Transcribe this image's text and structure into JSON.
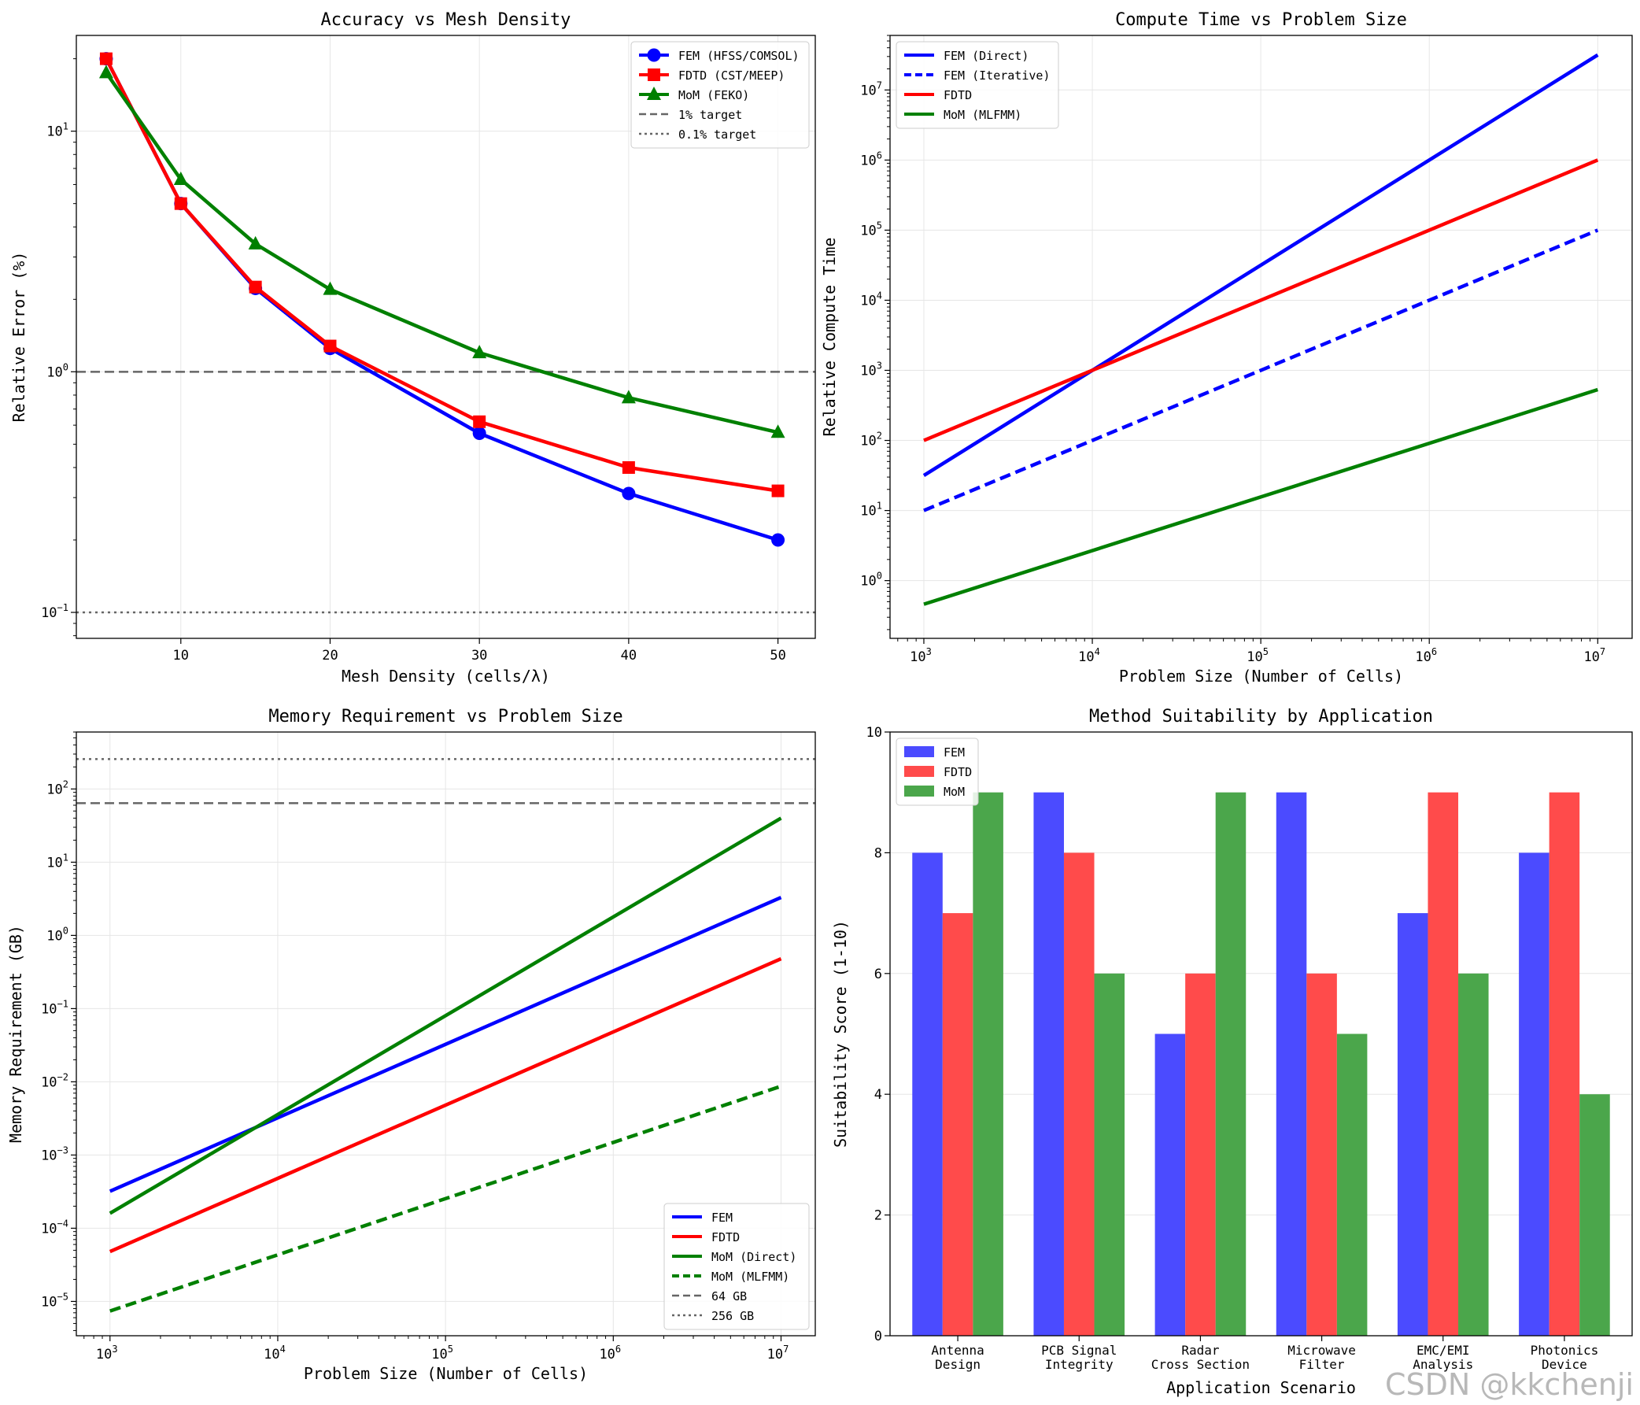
{
  "chart_data": [
    {
      "type": "line",
      "title": "Accuracy vs Mesh Density",
      "xlabel": "Mesh Density (cells/λ)",
      "ylabel": "Relative Error (%)",
      "xscale": "linear",
      "yscale": "log",
      "xlim": [
        3,
        52.5
      ],
      "ylim": [
        0.078,
        25
      ],
      "xticks": [
        10,
        20,
        30,
        40,
        50
      ],
      "yticks": [
        {
          "base": "10",
          "exp": "1",
          "value": 10
        },
        {
          "base": "10",
          "exp": "0",
          "value": 1
        },
        {
          "base": "10",
          "exp": "−1",
          "value": 0.1
        }
      ],
      "grid": true,
      "legend_position": "upper right",
      "x": [
        5,
        10,
        15,
        20,
        30,
        40,
        50
      ],
      "series": [
        {
          "name": "FEM (HFSS/COMSOL)",
          "color": "#0000ff",
          "marker": "circle",
          "values": [
            20,
            5,
            2.22,
            1.25,
            0.555,
            0.312,
            0.2
          ]
        },
        {
          "name": "FDTD (CST/MEEP)",
          "color": "#ff0000",
          "marker": "square",
          "values": [
            20,
            5,
            2.25,
            1.28,
            0.62,
            0.4,
            0.32
          ]
        },
        {
          "name": "MoM (FEKO)",
          "color": "#008000",
          "marker": "triangle",
          "values": [
            17.5,
            6.3,
            3.4,
            2.2,
            1.2,
            0.78,
            0.56
          ]
        }
      ],
      "reference_lines": [
        {
          "name": "1% target",
          "value": 1,
          "style": "dashed",
          "color": "#666666"
        },
        {
          "name": "0.1% target",
          "value": 0.1,
          "style": "dotted",
          "color": "#666666"
        }
      ]
    },
    {
      "type": "line",
      "title": "Compute Time vs Problem Size",
      "xlabel": "Problem Size (Number of Cells)",
      "ylabel": "Relative Compute Time",
      "xscale": "log",
      "yscale": "log",
      "xlim": [
        630,
        16000000
      ],
      "ylim": [
        0.15,
        60000000
      ],
      "xticks": [
        {
          "base": "10",
          "exp": "3",
          "value": 1000
        },
        {
          "base": "10",
          "exp": "4",
          "value": 10000
        },
        {
          "base": "10",
          "exp": "5",
          "value": 100000
        },
        {
          "base": "10",
          "exp": "6",
          "value": 1000000
        },
        {
          "base": "10",
          "exp": "7",
          "value": 10000000
        }
      ],
      "yticks": [
        {
          "base": "10",
          "exp": "0",
          "value": 1
        },
        {
          "base": "10",
          "exp": "1",
          "value": 10
        },
        {
          "base": "10",
          "exp": "2",
          "value": 100
        },
        {
          "base": "10",
          "exp": "3",
          "value": 1000
        },
        {
          "base": "10",
          "exp": "4",
          "value": 10000
        },
        {
          "base": "10",
          "exp": "5",
          "value": 100000
        },
        {
          "base": "10",
          "exp": "6",
          "value": 1000000
        },
        {
          "base": "10",
          "exp": "7",
          "value": 10000000
        }
      ],
      "grid": true,
      "legend_position": "upper left",
      "x": [
        1000,
        10000000
      ],
      "series": [
        {
          "name": "FEM (Direct)",
          "color": "#0000ff",
          "style": "solid",
          "values": [
            31.6,
            31600000
          ]
        },
        {
          "name": "FEM (Iterative)",
          "color": "#0000ff",
          "style": "dashed",
          "values": [
            10,
            100000
          ]
        },
        {
          "name": "FDTD",
          "color": "#ff0000",
          "style": "solid",
          "values": [
            100,
            1000000
          ]
        },
        {
          "name": "MoM (MLFMM)",
          "color": "#008000",
          "style": "solid",
          "values": [
            0.46,
            530
          ]
        }
      ]
    },
    {
      "type": "line",
      "title": "Memory Requirement vs Problem Size",
      "xlabel": "Problem Size (Number of Cells)",
      "ylabel": "Memory Requirement (GB)",
      "xscale": "log",
      "yscale": "log",
      "xlim": [
        630,
        16000000
      ],
      "ylim": [
        3.4e-06,
        600
      ],
      "xticks": [
        {
          "base": "10",
          "exp": "3",
          "value": 1000
        },
        {
          "base": "10",
          "exp": "4",
          "value": 10000
        },
        {
          "base": "10",
          "exp": "5",
          "value": 100000
        },
        {
          "base": "10",
          "exp": "6",
          "value": 1000000
        },
        {
          "base": "10",
          "exp": "7",
          "value": 10000000
        }
      ],
      "yticks": [
        {
          "base": "10",
          "exp": "−5",
          "value": 1e-05
        },
        {
          "base": "10",
          "exp": "−4",
          "value": 0.0001
        },
        {
          "base": "10",
          "exp": "−3",
          "value": 0.001
        },
        {
          "base": "10",
          "exp": "−2",
          "value": 0.01
        },
        {
          "base": "10",
          "exp": "−1",
          "value": 0.1
        },
        {
          "base": "10",
          "exp": "0",
          "value": 1
        },
        {
          "base": "10",
          "exp": "1",
          "value": 10
        },
        {
          "base": "10",
          "exp": "2",
          "value": 100
        }
      ],
      "grid": true,
      "legend_position": "lower right",
      "x": [
        1000,
        10000000
      ],
      "series": [
        {
          "name": "FEM",
          "color": "#0000ff",
          "style": "solid",
          "values": [
            0.00032,
            3.3
          ]
        },
        {
          "name": "FDTD",
          "color": "#ff0000",
          "style": "solid",
          "values": [
            4.8e-05,
            0.48
          ]
        },
        {
          "name": "MoM (Direct)",
          "color": "#008000",
          "style": "solid",
          "values": [
            0.00016,
            40
          ]
        },
        {
          "name": "MoM (MLFMM)",
          "color": "#008000",
          "style": "dashed",
          "values": [
            7.4e-06,
            0.0087
          ]
        }
      ],
      "reference_lines": [
        {
          "name": "64 GB",
          "value": 64,
          "style": "dashed",
          "color": "#666666"
        },
        {
          "name": "256 GB",
          "value": 256,
          "style": "dotted",
          "color": "#666666"
        }
      ]
    },
    {
      "type": "bar",
      "title": "Method Suitability by Application",
      "xlabel": "Application Scenario",
      "ylabel": "Suitability Score (1-10)",
      "ylim": [
        0,
        10
      ],
      "yticks": [
        0,
        2,
        4,
        6,
        8,
        10
      ],
      "grid": true,
      "legend_position": "upper left",
      "categories": [
        [
          "Antenna",
          "Design"
        ],
        [
          "PCB Signal",
          "Integrity"
        ],
        [
          "Radar",
          "Cross Section"
        ],
        [
          "Microwave",
          "Filter"
        ],
        [
          "EMC/EMI",
          "Analysis"
        ],
        [
          "Photonics",
          "Device"
        ]
      ],
      "series": [
        {
          "name": "FEM",
          "color": "#4b4bff",
          "values": [
            8,
            9,
            5,
            9,
            7,
            8
          ]
        },
        {
          "name": "FDTD",
          "color": "#ff4b4b",
          "values": [
            7,
            8,
            6,
            6,
            9,
            9
          ]
        },
        {
          "name": "MoM",
          "color": "#4ba64b",
          "values": [
            9,
            6,
            9,
            5,
            6,
            4
          ]
        }
      ]
    }
  ],
  "watermark": "CSDN @kkchenji"
}
